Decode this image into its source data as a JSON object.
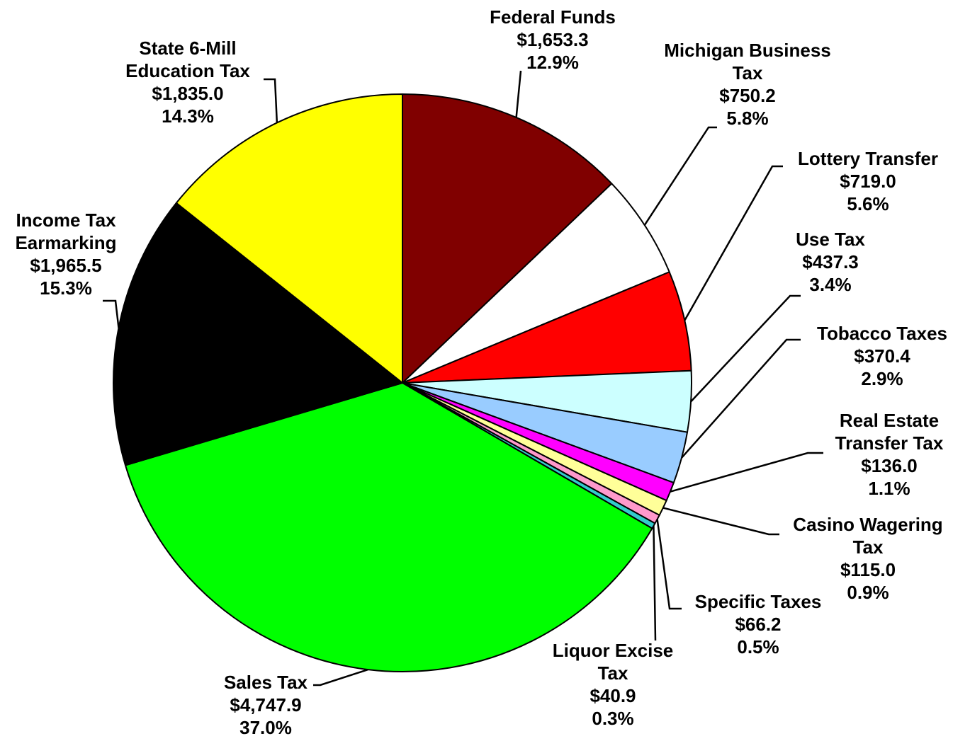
{
  "chart_data": {
    "type": "pie",
    "categories": [
      "Federal Funds",
      "Michigan Business Tax",
      "Lottery Transfer",
      "Use Tax",
      "Tobacco Taxes",
      "Real Estate Transfer Tax",
      "Casino Wagering Tax",
      "Specific Taxes",
      "Liquor Excise Tax",
      "Sales Tax",
      "Income Tax Earmarking",
      "State 6-Mill Education Tax"
    ],
    "values": [
      1653.3,
      750.2,
      719.0,
      437.3,
      370.4,
      136.0,
      115.0,
      66.2,
      40.9,
      4747.9,
      1965.5,
      1835.0
    ],
    "value_labels": [
      "$1,653.3",
      "$750.2",
      "$719.0",
      "$437.3",
      "$370.4",
      "$136.0",
      "$115.0",
      "$66.2",
      "$40.9",
      "$4,747.9",
      "$1,965.5",
      "$1,835.0"
    ],
    "percent_labels": [
      "12.9%",
      "5.8%",
      "5.6%",
      "3.4%",
      "2.9%",
      "1.1%",
      "0.9%",
      "0.5%",
      "0.3%",
      "37.0%",
      "15.3%",
      "14.3%"
    ],
    "colors": [
      "#800000",
      "#ffffff",
      "#ff0000",
      "#ccffff",
      "#99ccff",
      "#ff00ff",
      "#ffff99",
      "#ff99cc",
      "#33cccc",
      "#00ff00",
      "#000000",
      "#ffff00"
    ]
  }
}
